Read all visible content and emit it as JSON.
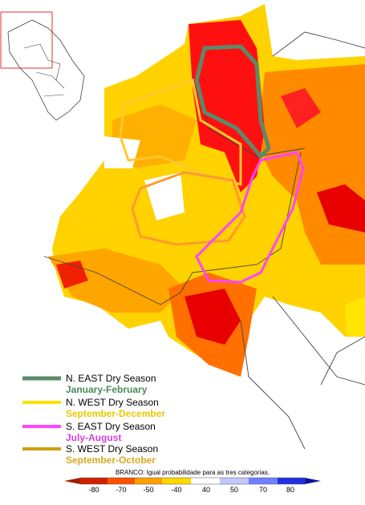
{
  "legend": [
    {
      "name": "N. EAST Dry Season",
      "period": "January-February"
    },
    {
      "name": "N. WEST Dry Season",
      "period": "September-December"
    },
    {
      "name": "S. EAST Dry Season",
      "period": "July-August"
    },
    {
      "name": "S. WEST Dry Season",
      "period": "September-October"
    }
  ],
  "colorbar": {
    "note": "BRANCO: Igual probabilidade para as tres categorias.",
    "ticks": [
      -80,
      -70,
      -50,
      -40,
      40,
      50,
      70,
      80
    ]
  }
}
